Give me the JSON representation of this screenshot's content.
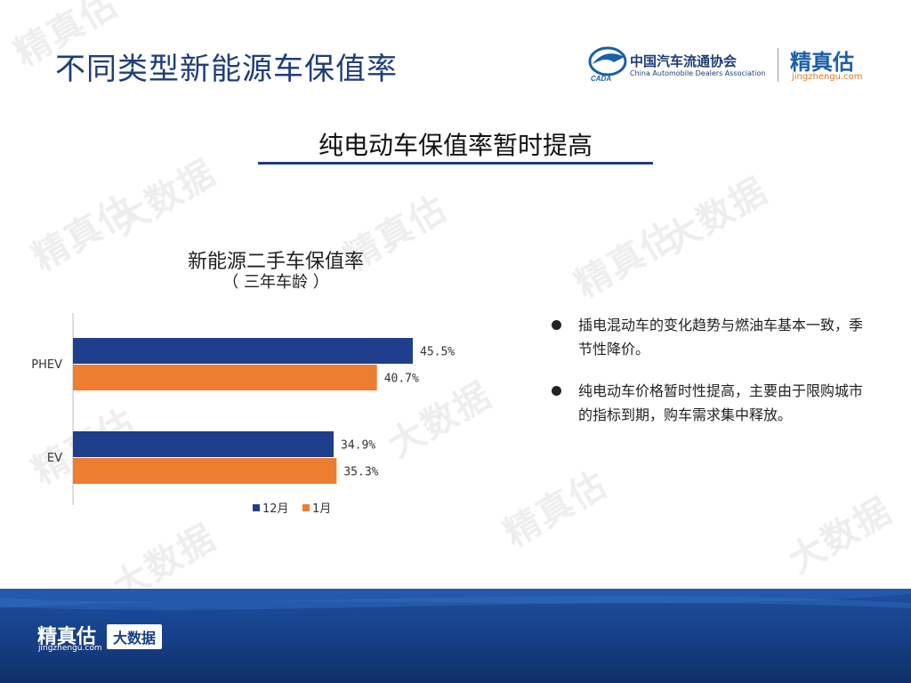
{
  "page_title": "不同类型新能源车保值率",
  "header": {
    "association_cn": "中国汽车流通协会",
    "association_en": "China Automobile Dealers Association",
    "association_abbr": "CADA",
    "brand_name": "精真估",
    "brand_domain": "jingzhengu.com"
  },
  "subtitle": "纯电动车保值率暂时提高",
  "bullets": [
    "插电混动车的变化趋势与燃油车基本一致，季节性降价。",
    "纯电动车价格暂时性提高，主要由于限购城市的指标到期，购车需求集中释放。"
  ],
  "footer": {
    "brand_name": "精真估",
    "brand_domain": "jingzhengu.com",
    "badge": "大数据"
  },
  "watermark": {
    "brand": "精真估",
    "badge": "大数据"
  },
  "colors": {
    "navy": "#1f3d7a",
    "series_dec": "#1f3f8c",
    "series_jan": "#ed7d31",
    "footer": "#163f86"
  },
  "chart_data": {
    "type": "bar",
    "orientation": "horizontal",
    "title": "新能源二手车保值率",
    "subtitle": "（ 三年车龄 ）",
    "categories": [
      "PHEV",
      "EV"
    ],
    "series": [
      {
        "name": "12月",
        "values": [
          45.5,
          34.9
        ],
        "color": "#1f3f8c"
      },
      {
        "name": "1月",
        "values": [
          40.7,
          35.3
        ],
        "color": "#ed7d31"
      }
    ],
    "value_labels": [
      [
        "45.5%",
        "34.9%"
      ],
      [
        "40.7%",
        "35.3%"
      ]
    ],
    "unit": "%",
    "xlim": [
      0,
      50
    ],
    "grid": false,
    "legend_position": "bottom"
  }
}
